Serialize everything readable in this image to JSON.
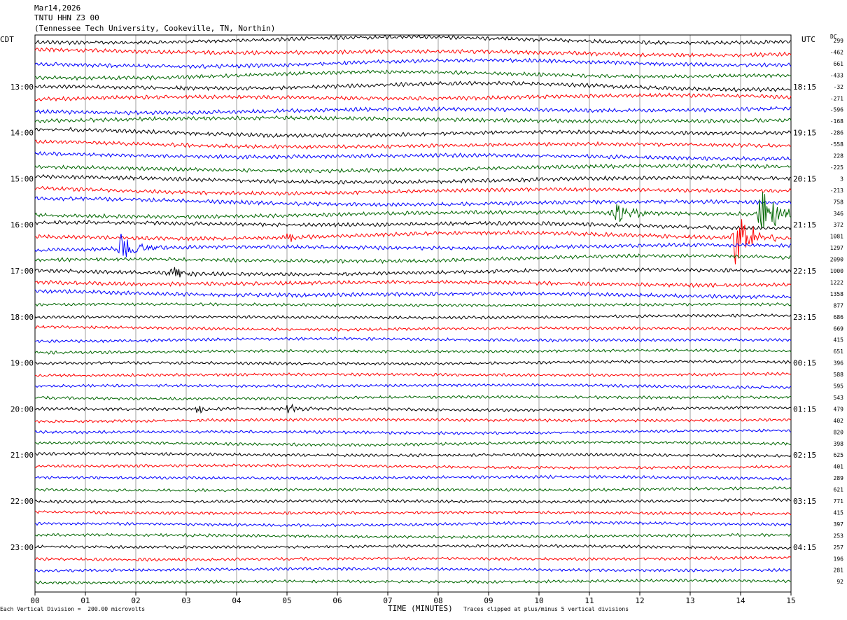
{
  "header": {
    "date": "Mar14,2026",
    "station": "TNTU HHN Z3 00",
    "location": "(Tennessee Tech University, Cookeville, TN, Northin)"
  },
  "left_timezone": "CDT",
  "right_timezone": "UTC",
  "dc_label": "DC",
  "footer": {
    "scale_note": "Each Vertical Division =  200.00 microvolts",
    "clip_note": "Traces clipped at plus/minus 5 vertical divisions"
  },
  "colors": {
    "black": "#000000",
    "red": "#ff0000",
    "blue": "#0000ff",
    "green": "#006600",
    "grid": "#888888"
  },
  "chart_data": {
    "type": "line",
    "title": "",
    "xlabel": "TIME (MINUTES)",
    "xlim": [
      0,
      15
    ],
    "x_ticks": [
      "00",
      "01",
      "02",
      "03",
      "04",
      "05",
      "06",
      "07",
      "08",
      "09",
      "10",
      "11",
      "12",
      "13",
      "14",
      "15"
    ],
    "trace_count": 48,
    "color_cycle": [
      "black",
      "red",
      "blue",
      "green"
    ],
    "left_hour_labels": [
      "13:00",
      "14:00",
      "15:00",
      "16:00",
      "17:00",
      "18:00",
      "19:00",
      "20:00",
      "21:00",
      "22:00",
      "23:00"
    ],
    "right_hour_labels": [
      "18:15",
      "19:15",
      "20:15",
      "21:15",
      "22:15",
      "23:15",
      "00:15",
      "01:15",
      "02:15",
      "03:15",
      "04:15"
    ],
    "dc_offsets": [
      "299",
      "-462",
      "661",
      "-433",
      "-32",
      "-271",
      "-596",
      "-168",
      "-286",
      "-558",
      "228",
      "-225",
      "3",
      "-213",
      "758",
      "346",
      "372",
      "1081",
      "1297",
      "2090",
      "1000",
      "1222",
      "1358",
      "877",
      "686",
      "669",
      "415",
      "651",
      "396",
      "588",
      "595",
      "543",
      "479",
      "402",
      "820",
      "398",
      "625",
      "401",
      "289",
      "621",
      "771",
      "415",
      "397",
      "253",
      "257",
      "196",
      "281",
      "92"
    ],
    "events": [
      {
        "trace": 15,
        "minute": 11.5,
        "amplitude": "large"
      },
      {
        "trace": 15,
        "minute": 14.4,
        "amplitude": "very large"
      },
      {
        "trace": 17,
        "minute": 13.9,
        "amplitude": "very large"
      },
      {
        "trace": 18,
        "minute": 1.7,
        "amplitude": "large"
      },
      {
        "trace": 20,
        "minute": 2.7,
        "amplitude": "medium"
      },
      {
        "trace": 17,
        "minute": 5.0,
        "amplitude": "small"
      },
      {
        "trace": 32,
        "minute": 5.0,
        "amplitude": "small"
      },
      {
        "trace": 32,
        "minute": 3.2,
        "amplitude": "small"
      }
    ]
  }
}
